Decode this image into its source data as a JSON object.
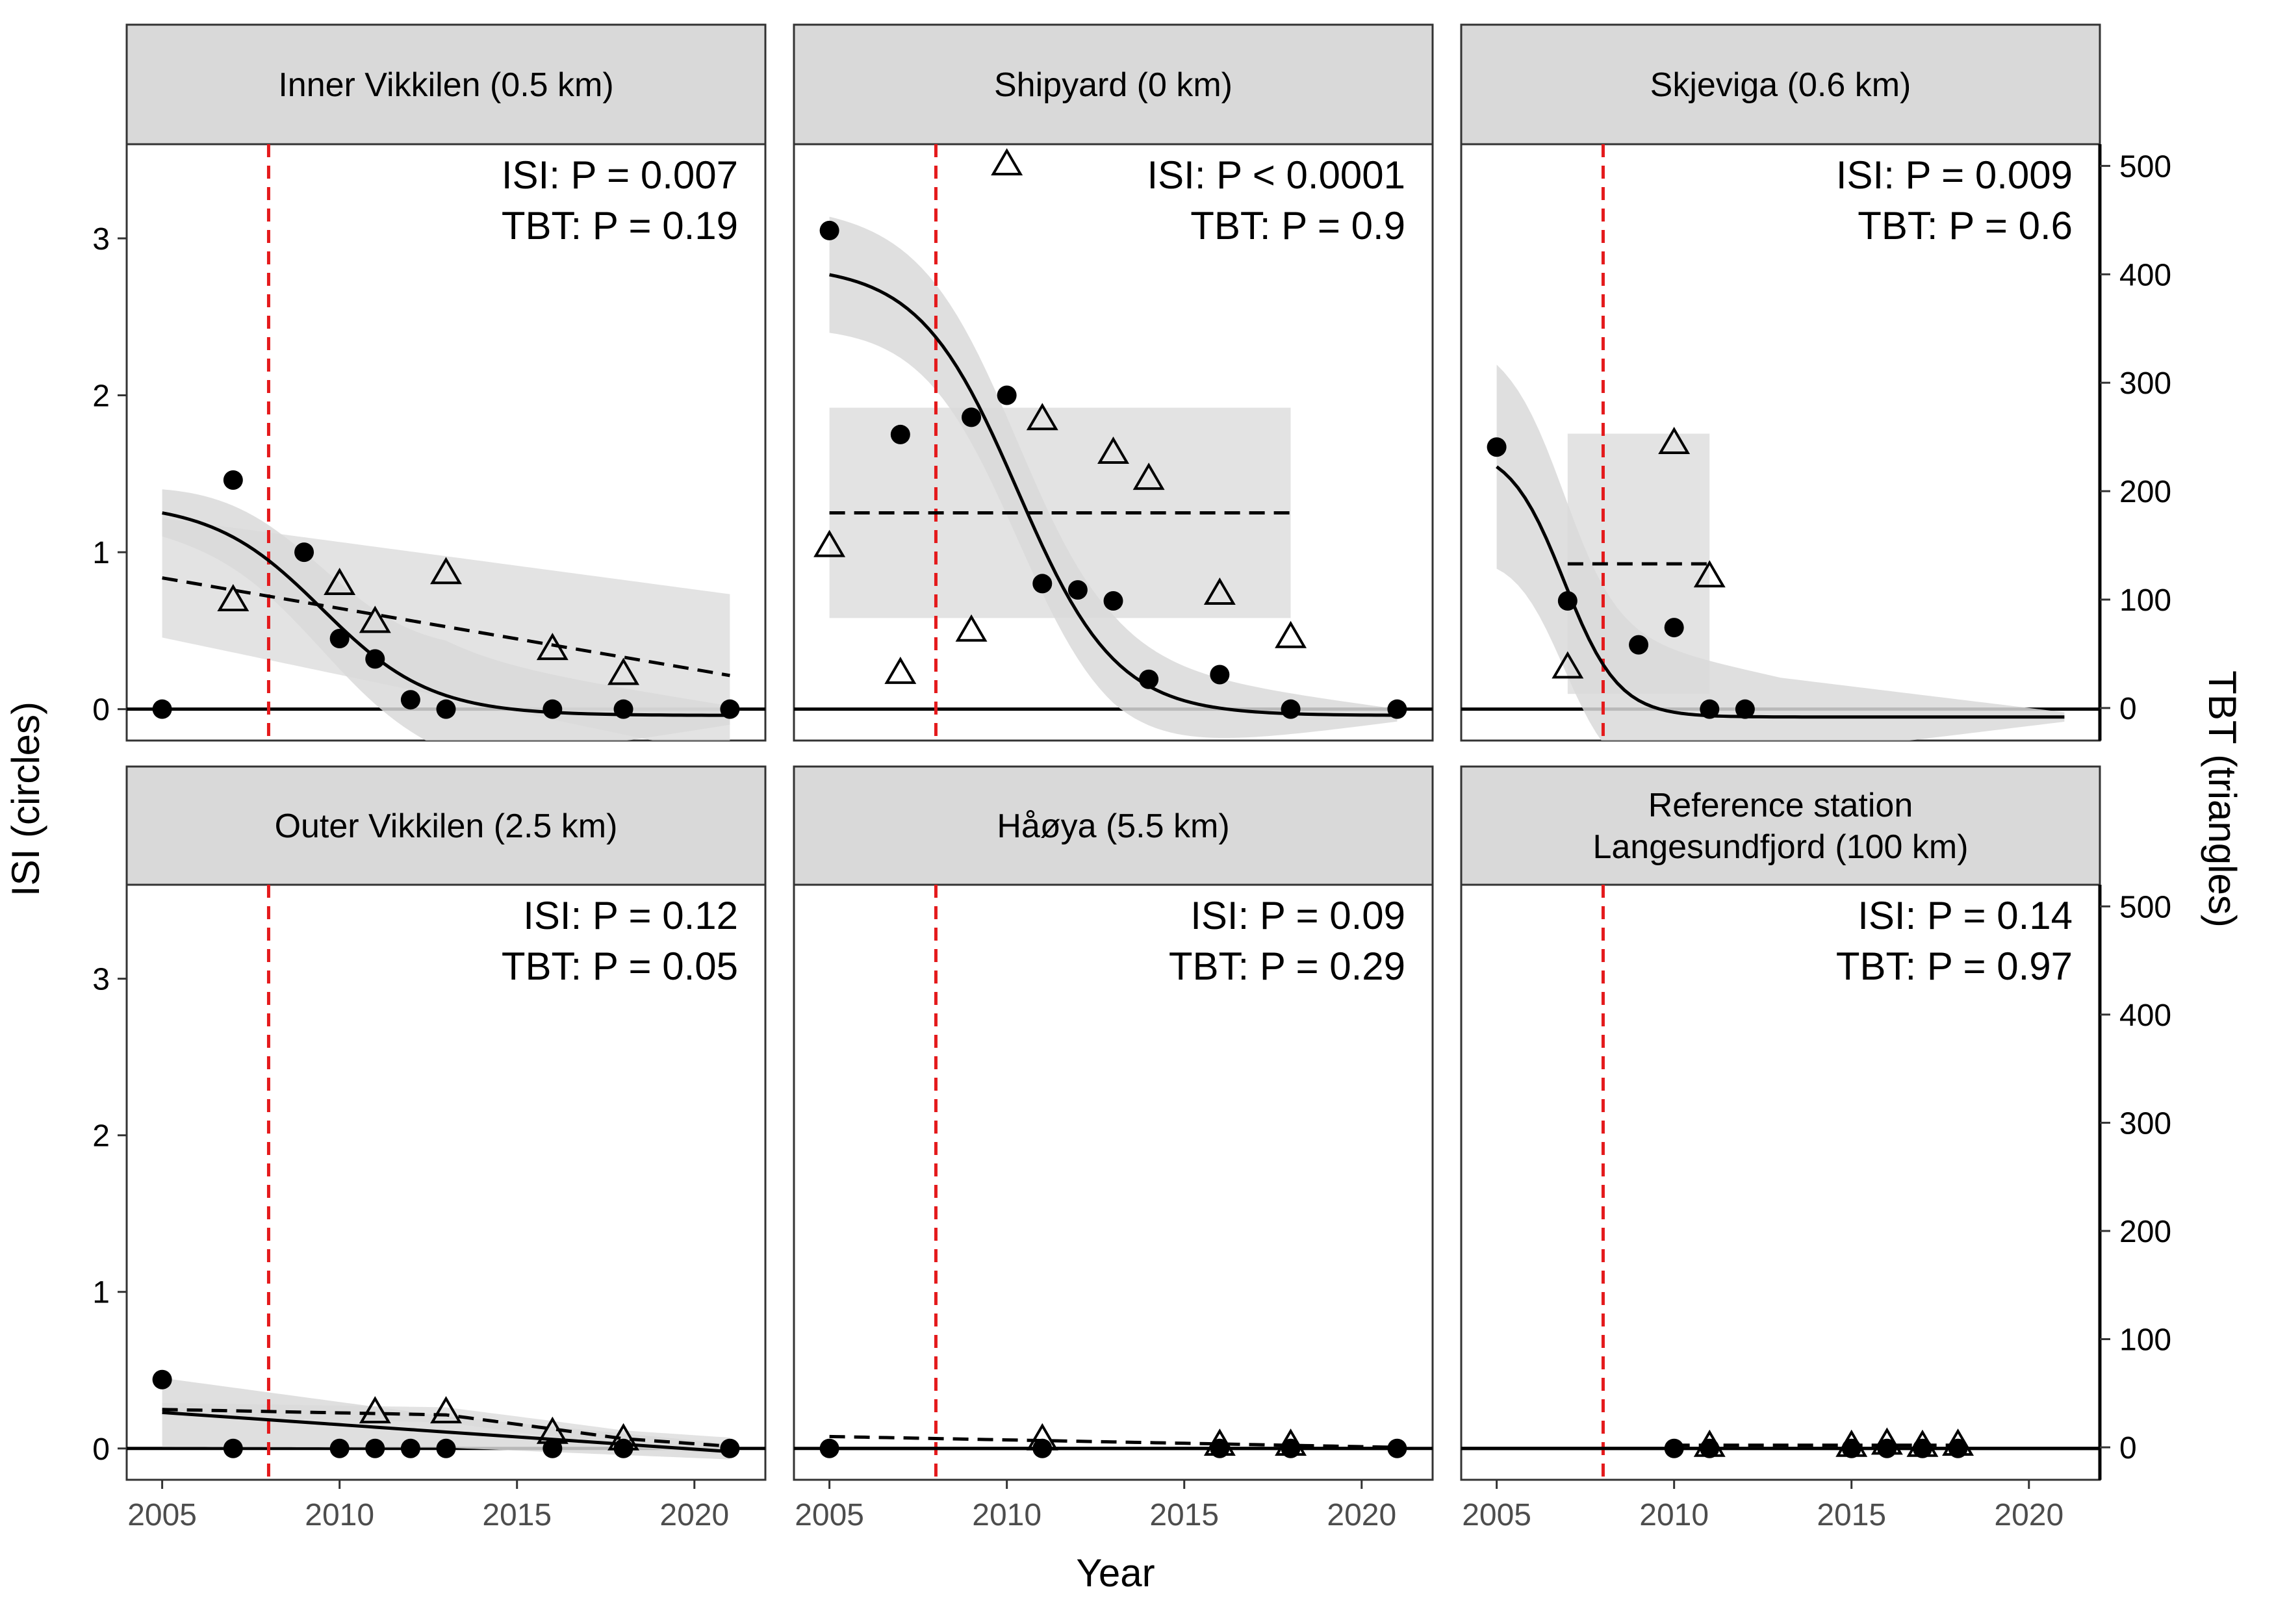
{
  "figure": {
    "xlabel": "Year",
    "ylabel_left": "ISI (circles)",
    "ylabel_right": "TBT (triangles)",
    "colors": {
      "reference_line": "#e41a1c",
      "band": "#d9d9d9",
      "strip": "#d9d9d9",
      "mark": "#000000"
    }
  },
  "chart_data": [
    {
      "type": "scatter",
      "title": "Inner Vikkilen (0.5 km)",
      "stats": [
        "ISI: P =  0.007",
        "TBT: P =  0.19"
      ],
      "xlim": [
        2004,
        2022
      ],
      "ylim_left": [
        -0.2,
        3.6
      ],
      "ylim_right": [
        -30,
        520
      ],
      "vline": 2008,
      "isi_points": [
        [
          2005,
          0
        ],
        [
          2007,
          1.46
        ],
        [
          2009,
          1.0
        ],
        [
          2010,
          0.45
        ],
        [
          2011,
          0.32
        ],
        [
          2012,
          0.06
        ],
        [
          2013,
          0
        ],
        [
          2016,
          0
        ],
        [
          2018,
          0
        ],
        [
          2021,
          0
        ]
      ],
      "tbt_points": [
        [
          2007,
          100
        ],
        [
          2010,
          115
        ],
        [
          2011,
          80
        ],
        [
          2013,
          125
        ],
        [
          2016,
          55
        ],
        [
          2018,
          32
        ]
      ],
      "isi_fit": {
        "shape": "sigmoid",
        "from": 2005,
        "to": 2021,
        "start": 1.32,
        "mid": 2009.5,
        "k": 0.65,
        "end": -0.04
      },
      "isi_band": {
        "width_start": 0.15,
        "width_mid": 0.35,
        "width_end": 0.06
      },
      "tbt_fit": {
        "shape": "linear",
        "from": 2005,
        "to": 2021,
        "y0": 120,
        "y1": 30
      },
      "tbt_band": {
        "width_start": 55,
        "width_end": 75
      }
    },
    {
      "type": "scatter",
      "title": "Shipyard (0 km)",
      "stats": [
        "ISI: P < 0.0001",
        "TBT: P =  0.9"
      ],
      "xlim": [
        2004,
        2022
      ],
      "ylim_left": [
        -0.2,
        3.6
      ],
      "ylim_right": [
        -30,
        520
      ],
      "vline": 2008,
      "isi_points": [
        [
          2005,
          3.05
        ],
        [
          2007,
          1.75
        ],
        [
          2009,
          1.86
        ],
        [
          2010,
          2.0
        ],
        [
          2011,
          0.8
        ],
        [
          2012,
          0.76
        ],
        [
          2013,
          0.69
        ],
        [
          2014,
          0.19
        ],
        [
          2016,
          0.22
        ],
        [
          2018,
          0
        ],
        [
          2021,
          0
        ]
      ],
      "tbt_points": [
        [
          2005,
          150
        ],
        [
          2007,
          33
        ],
        [
          2009,
          72
        ],
        [
          2010,
          502
        ],
        [
          2011,
          267
        ],
        [
          2013,
          236
        ],
        [
          2014,
          212
        ],
        [
          2016,
          106
        ],
        [
          2018,
          66
        ]
      ],
      "isi_fit": {
        "shape": "sigmoid",
        "from": 2005,
        "to": 2021,
        "start": 2.83,
        "mid": 2010.3,
        "k": 0.72,
        "end": -0.04
      },
      "isi_band": {
        "width_start": 0.37,
        "width_mid": 0.28,
        "width_end": 0.04
      },
      "tbt_fit": {
        "shape": "linear",
        "from": 2005,
        "to": 2018,
        "y0": 180,
        "y1": 180
      },
      "tbt_band": {
        "width_start": 97,
        "width_end": 97
      }
    },
    {
      "type": "scatter",
      "title": "Skjeviga (0.6 km)",
      "stats": [
        "ISI: P =  0.009",
        "TBT: P =  0.6"
      ],
      "xlim": [
        2004,
        2022
      ],
      "ylim_left": [
        -0.2,
        3.6
      ],
      "ylim_right": [
        -30,
        520
      ],
      "vline": 2008,
      "isi_points": [
        [
          2005,
          1.67
        ],
        [
          2007,
          0.69
        ],
        [
          2009,
          0.41
        ],
        [
          2010,
          0.52
        ],
        [
          2011,
          0
        ],
        [
          2012,
          0
        ]
      ],
      "tbt_points": [
        [
          2007,
          38
        ],
        [
          2010,
          245
        ],
        [
          2011,
          122
        ]
      ],
      "isi_fit": {
        "shape": "sigmoid",
        "from": 2005,
        "to": 2021,
        "start": 1.68,
        "mid": 2006.9,
        "k": 1.3,
        "end": -0.05
      },
      "isi_band": {
        "width_start": 0.65,
        "width_mid": 0.25,
        "width_end": 0.03
      },
      "tbt_fit": {
        "shape": "linear",
        "from": 2007,
        "to": 2011,
        "y0": 133,
        "y1": 133
      },
      "tbt_band": {
        "width_start": 120,
        "width_end": 120
      }
    },
    {
      "type": "scatter",
      "title": "Outer Vikkilen (2.5 km)",
      "stats": [
        "ISI: P =  0.12",
        "TBT: P =  0.05"
      ],
      "xlim": [
        2004,
        2022
      ],
      "ylim_left": [
        -0.2,
        3.6
      ],
      "ylim_right": [
        -30,
        520
      ],
      "vline": 2008,
      "isi_points": [
        [
          2005,
          0.44
        ],
        [
          2007,
          0
        ],
        [
          2010,
          0
        ],
        [
          2011,
          0
        ],
        [
          2012,
          0
        ],
        [
          2013,
          0
        ],
        [
          2016,
          0
        ],
        [
          2018,
          0
        ],
        [
          2021,
          0
        ]
      ],
      "tbt_points": [
        [
          2011,
          33
        ],
        [
          2013,
          33
        ],
        [
          2016,
          14
        ],
        [
          2018,
          8
        ]
      ],
      "isi_fit": {
        "shape": "linear",
        "from": 2005,
        "to": 2021,
        "y0": 0.23,
        "y1": -0.02
      },
      "isi_band": {
        "width_start": 0.22,
        "width_mid": 0.1,
        "width_end": 0.05
      },
      "tbt_fit": {
        "shape": "piecewise",
        "from": 2005,
        "to": 2021,
        "points": [
          [
            2005,
            35
          ],
          [
            2013,
            30
          ],
          [
            2016,
            17
          ],
          [
            2018,
            8
          ],
          [
            2021,
            1
          ]
        ]
      },
      "tbt_band": {
        "width_start": 6,
        "width_end": 8
      }
    },
    {
      "type": "scatter",
      "title": "Håøya (5.5 km)",
      "stats": [
        "ISI: P =  0.09",
        "TBT: P =  0.29"
      ],
      "xlim": [
        2004,
        2022
      ],
      "ylim_left": [
        -0.2,
        3.6
      ],
      "ylim_right": [
        -30,
        520
      ],
      "vline": 2008,
      "isi_points": [
        [
          2005,
          0
        ],
        [
          2011,
          0
        ],
        [
          2016,
          0
        ],
        [
          2018,
          0
        ],
        [
          2021,
          0
        ]
      ],
      "tbt_points": [
        [
          2011,
          8
        ],
        [
          2016,
          3
        ],
        [
          2018,
          3
        ]
      ],
      "isi_fit": {
        "shape": "linear",
        "from": 2005,
        "to": 2021,
        "y0": 0.0,
        "y1": 0.0
      },
      "tbt_fit": {
        "shape": "linear",
        "from": 2005,
        "to": 2021,
        "y0": 10,
        "y1": 0
      }
    },
    {
      "type": "scatter",
      "title": "Reference station\nLangesundfjord (100 km)",
      "stats": [
        "ISI: P =  0.14",
        "TBT: P =  0.97"
      ],
      "xlim": [
        2004,
        2022
      ],
      "ylim_left": [
        -0.2,
        3.6
      ],
      "ylim_right": [
        -30,
        520
      ],
      "vline": 2008,
      "isi_points": [
        [
          2010,
          0
        ],
        [
          2011,
          0
        ],
        [
          2015,
          0
        ],
        [
          2016,
          0
        ],
        [
          2017,
          0
        ],
        [
          2018,
          0
        ]
      ],
      "tbt_points": [
        [
          2011,
          2
        ],
        [
          2015,
          2
        ],
        [
          2016,
          4
        ],
        [
          2017,
          2
        ],
        [
          2018,
          3
        ]
      ],
      "isi_fit": {
        "shape": "linear",
        "from": 2004,
        "to": 2022,
        "y0": 0,
        "y1": 0
      },
      "tbt_fit": {
        "shape": "linear",
        "from": 2010,
        "to": 2018,
        "y0": 2,
        "y1": 2
      }
    }
  ],
  "axes": {
    "x_ticks": [
      "2005",
      "2010",
      "2015",
      "2020"
    ],
    "y_left_ticks": [
      "0",
      "1",
      "2",
      "3"
    ],
    "y_right_ticks": [
      "0",
      "100",
      "200",
      "300",
      "400",
      "500"
    ]
  }
}
